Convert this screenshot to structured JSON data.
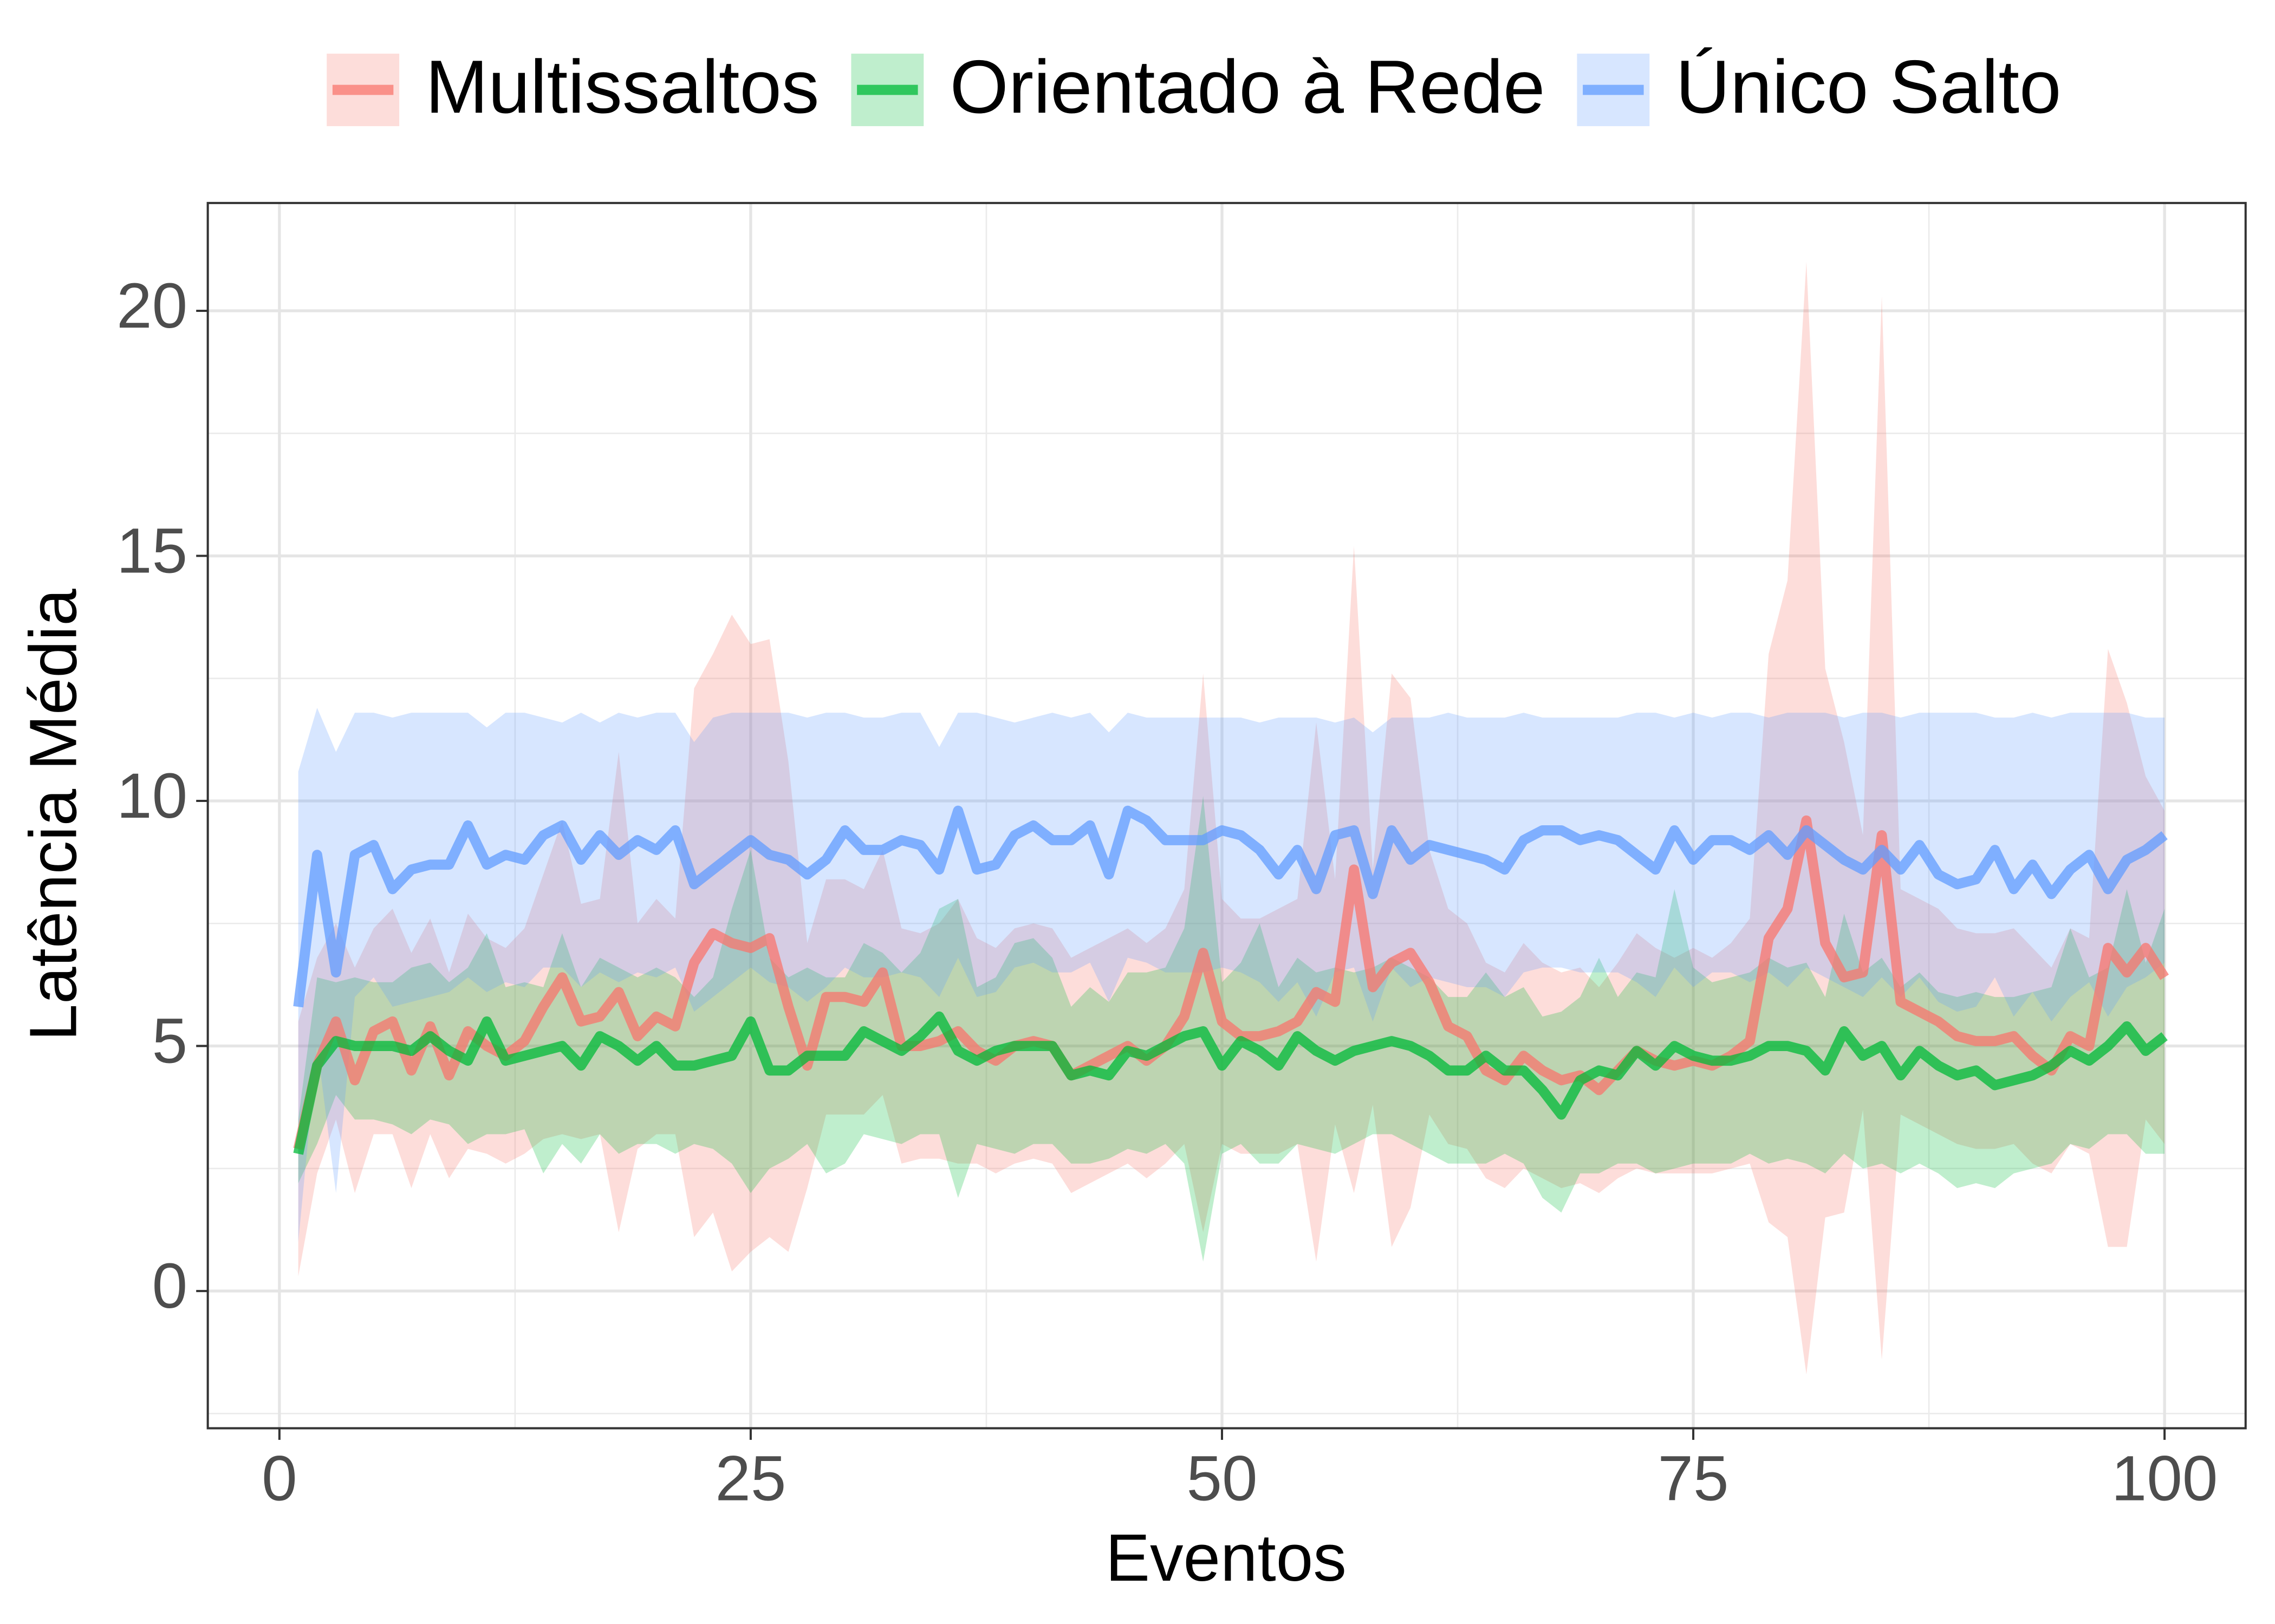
{
  "chart_data": {
    "type": "line",
    "xlabel": "Eventos",
    "ylabel": "Latência Média",
    "legend": "top",
    "grid": true,
    "xlim": [
      -3.8,
      104.3
    ],
    "ylim": [
      -2.8,
      22.2
    ],
    "xticks": [
      0,
      25,
      50,
      75,
      100
    ],
    "yticks": [
      0,
      5,
      10,
      15,
      20
    ],
    "xminorticks": [
      12.5,
      37.5,
      62.5,
      87.5
    ],
    "yminorticks": [
      -2.5,
      2.5,
      7.5,
      12.5,
      17.5
    ],
    "x": [
      1,
      2,
      3,
      4,
      5,
      6,
      7,
      8,
      9,
      10,
      11,
      12,
      13,
      14,
      15,
      16,
      17,
      18,
      19,
      20,
      21,
      22,
      23,
      24,
      25,
      26,
      27,
      28,
      29,
      30,
      31,
      32,
      33,
      34,
      35,
      36,
      37,
      38,
      39,
      40,
      41,
      42,
      43,
      44,
      45,
      46,
      47,
      48,
      49,
      50,
      51,
      52,
      53,
      54,
      55,
      56,
      57,
      58,
      59,
      60,
      61,
      62,
      63,
      64,
      65,
      66,
      67,
      68,
      69,
      70,
      71,
      72,
      73,
      74,
      75,
      76,
      77,
      78,
      79,
      80,
      81,
      82,
      83,
      84,
      85,
      86,
      87,
      88,
      89,
      90,
      91,
      92,
      93,
      94,
      95,
      96,
      97,
      98,
      99,
      100
    ],
    "series": [
      {
        "name": "Multissaltos",
        "color": "#F8766D",
        "values": [
          2.9,
          4.6,
          5.5,
          4.3,
          5.3,
          5.5,
          4.5,
          5.4,
          4.4,
          5.3,
          5.0,
          4.8,
          5.1,
          5.8,
          6.4,
          5.5,
          5.6,
          6.1,
          5.2,
          5.6,
          5.4,
          6.7,
          7.3,
          7.1,
          7.0,
          7.2,
          5.8,
          4.6,
          6.0,
          6.0,
          5.9,
          6.5,
          5.0,
          5.0,
          5.1,
          5.3,
          4.9,
          4.7,
          5.0,
          5.1,
          5.0,
          4.4,
          4.6,
          4.8,
          5.0,
          4.7,
          5.0,
          5.6,
          6.9,
          5.5,
          5.2,
          5.2,
          5.3,
          5.5,
          6.1,
          5.9,
          8.6,
          6.2,
          6.7,
          6.9,
          6.3,
          5.4,
          5.2,
          4.5,
          4.3,
          4.8,
          4.5,
          4.3,
          4.4,
          4.1,
          4.5,
          4.9,
          4.7,
          4.6,
          4.7,
          4.6,
          4.8,
          5.1,
          7.2,
          7.8,
          9.6,
          7.1,
          6.4,
          6.5,
          9.3,
          5.9,
          5.7,
          5.5,
          5.2,
          5.1,
          5.1,
          5.2,
          4.8,
          4.5,
          5.2,
          5.0,
          7.0,
          6.5,
          7.0,
          6.4
        ],
        "upper": [
          5.5,
          6.8,
          7.5,
          6.6,
          7.4,
          7.8,
          6.9,
          7.6,
          6.5,
          7.7,
          7.2,
          7.0,
          7.4,
          8.5,
          9.6,
          7.9,
          8.0,
          11.0,
          7.5,
          8.0,
          7.6,
          12.3,
          13.0,
          13.8,
          13.2,
          13.3,
          10.8,
          7.1,
          8.4,
          8.4,
          8.2,
          9.0,
          7.4,
          7.3,
          7.5,
          8.0,
          7.2,
          7.0,
          7.4,
          7.5,
          7.4,
          6.8,
          7.0,
          7.2,
          7.4,
          7.1,
          7.4,
          8.2,
          12.6,
          8.0,
          7.6,
          7.6,
          7.8,
          8.0,
          11.6,
          8.4,
          15.2,
          8.6,
          12.6,
          12.1,
          9.0,
          7.8,
          7.5,
          6.7,
          6.5,
          7.1,
          6.7,
          6.5,
          6.6,
          6.2,
          6.7,
          7.3,
          7.0,
          6.8,
          7.0,
          6.8,
          7.1,
          7.6,
          13.0,
          14.5,
          21.0,
          12.7,
          11.2,
          9.3,
          20.3,
          8.2,
          8.0,
          7.8,
          7.4,
          7.3,
          7.3,
          7.4,
          7.0,
          6.6,
          7.4,
          7.2,
          13.1,
          12.0,
          10.5,
          9.8
        ],
        "lower": [
          0.3,
          2.4,
          3.5,
          2.0,
          3.2,
          3.2,
          2.1,
          3.2,
          2.3,
          2.9,
          2.8,
          2.6,
          2.8,
          3.1,
          3.2,
          3.1,
          3.2,
          1.2,
          2.9,
          3.2,
          3.2,
          1.1,
          1.6,
          0.4,
          0.8,
          1.1,
          0.8,
          2.1,
          3.6,
          3.6,
          3.6,
          4.0,
          2.6,
          2.7,
          2.7,
          2.6,
          2.6,
          2.4,
          2.6,
          2.7,
          2.6,
          2.0,
          2.2,
          2.4,
          2.6,
          2.3,
          2.6,
          3.0,
          1.2,
          3.0,
          2.8,
          2.8,
          2.8,
          3.0,
          0.6,
          3.4,
          2.0,
          3.8,
          0.9,
          1.7,
          3.6,
          3.0,
          2.9,
          2.3,
          2.1,
          2.5,
          2.3,
          2.1,
          2.2,
          2.0,
          2.3,
          2.5,
          2.4,
          2.4,
          2.4,
          2.4,
          2.5,
          2.6,
          1.4,
          1.1,
          -1.7,
          1.5,
          1.6,
          3.7,
          -1.4,
          3.6,
          3.4,
          3.2,
          3.0,
          2.9,
          2.9,
          3.0,
          2.6,
          2.4,
          3.0,
          2.8,
          0.9,
          0.9,
          3.5,
          3.0
        ]
      },
      {
        "name": "Orientado à Rede",
        "color": "#00BA38",
        "values": [
          2.8,
          4.6,
          5.1,
          5.0,
          5.0,
          5.0,
          4.9,
          5.2,
          4.9,
          4.7,
          5.5,
          4.7,
          4.8,
          4.9,
          5.0,
          4.6,
          5.2,
          5.0,
          4.7,
          5.0,
          4.6,
          4.6,
          4.7,
          4.8,
          5.5,
          4.5,
          4.5,
          4.8,
          4.8,
          4.8,
          5.3,
          5.1,
          4.9,
          5.2,
          5.6,
          4.9,
          4.7,
          4.9,
          5.0,
          5.0,
          5.0,
          4.4,
          4.5,
          4.4,
          4.9,
          4.8,
          5.0,
          5.2,
          5.3,
          4.6,
          5.1,
          4.9,
          4.6,
          5.2,
          4.9,
          4.7,
          4.9,
          5.0,
          5.1,
          5.0,
          4.8,
          4.5,
          4.5,
          4.8,
          4.5,
          4.5,
          4.1,
          3.6,
          4.3,
          4.5,
          4.4,
          4.9,
          4.6,
          5.0,
          4.8,
          4.7,
          4.7,
          4.8,
          5.0,
          5.0,
          4.9,
          4.5,
          5.3,
          4.8,
          5.0,
          4.4,
          4.9,
          4.6,
          4.4,
          4.5,
          4.2,
          4.3,
          4.4,
          4.6,
          4.9,
          4.7,
          5.0,
          5.4,
          4.9,
          5.2
        ],
        "upper": [
          3.5,
          6.4,
          6.3,
          6.4,
          6.3,
          6.3,
          6.6,
          6.7,
          6.3,
          6.6,
          7.3,
          6.2,
          6.3,
          6.2,
          7.3,
          6.2,
          6.8,
          6.6,
          6.4,
          6.6,
          6.4,
          6.0,
          6.4,
          7.8,
          9.0,
          6.8,
          6.4,
          6.6,
          6.4,
          6.4,
          7.1,
          6.9,
          6.5,
          6.9,
          7.8,
          8.0,
          6.2,
          6.4,
          7.1,
          7.2,
          6.8,
          5.8,
          6.2,
          5.9,
          6.5,
          6.5,
          6.6,
          7.4,
          10.1,
          6.3,
          6.7,
          7.5,
          6.2,
          6.8,
          6.5,
          6.6,
          6.5,
          6.6,
          6.8,
          6.6,
          6.4,
          6.0,
          6.0,
          6.5,
          6.0,
          6.2,
          5.6,
          5.7,
          6.0,
          6.8,
          6.0,
          6.5,
          6.4,
          8.2,
          6.6,
          6.3,
          6.4,
          6.5,
          6.8,
          6.6,
          6.7,
          6.0,
          7.7,
          6.5,
          6.8,
          6.2,
          6.5,
          6.1,
          6.0,
          6.1,
          6.0,
          6.0,
          6.1,
          6.2,
          7.4,
          6.4,
          6.6,
          8.2,
          6.7,
          7.8
        ],
        "lower": [
          2.2,
          3.0,
          4.0,
          3.5,
          3.5,
          3.4,
          3.2,
          3.5,
          3.4,
          3.0,
          3.2,
          3.2,
          3.3,
          2.4,
          3.0,
          2.6,
          3.2,
          2.8,
          3.0,
          3.0,
          2.8,
          3.0,
          2.9,
          2.6,
          2.0,
          2.5,
          2.7,
          3.0,
          2.4,
          2.6,
          3.2,
          3.1,
          3.0,
          3.2,
          3.2,
          1.9,
          3.0,
          2.9,
          2.8,
          3.0,
          3.0,
          2.6,
          2.6,
          2.7,
          2.9,
          2.8,
          3.0,
          2.6,
          0.6,
          2.8,
          3.0,
          2.6,
          2.6,
          3.0,
          2.9,
          2.8,
          3.0,
          3.2,
          3.2,
          3.0,
          2.8,
          2.6,
          2.6,
          2.6,
          2.8,
          2.6,
          1.9,
          1.6,
          2.4,
          2.4,
          2.6,
          2.6,
          2.4,
          2.5,
          2.6,
          2.6,
          2.6,
          2.8,
          2.6,
          2.7,
          2.6,
          2.4,
          2.8,
          2.5,
          2.6,
          2.4,
          2.6,
          2.4,
          2.1,
          2.2,
          2.1,
          2.4,
          2.5,
          2.6,
          3.0,
          2.9,
          3.2,
          3.2,
          2.8,
          2.8
        ]
      },
      {
        "name": "Único Salto",
        "color": "#619CFF",
        "values": [
          5.8,
          8.9,
          6.5,
          8.9,
          9.1,
          8.2,
          8.6,
          8.7,
          8.7,
          9.5,
          8.7,
          8.9,
          8.8,
          9.3,
          9.5,
          8.8,
          9.3,
          8.9,
          9.2,
          9.0,
          9.4,
          8.3,
          8.6,
          8.9,
          9.2,
          8.9,
          8.8,
          8.5,
          8.8,
          9.4,
          9.0,
          9.0,
          9.2,
          9.1,
          8.6,
          9.8,
          8.6,
          8.7,
          9.3,
          9.5,
          9.2,
          9.2,
          9.5,
          8.5,
          9.8,
          9.6,
          9.2,
          9.2,
          9.2,
          9.4,
          9.3,
          9.0,
          8.5,
          9.0,
          8.2,
          9.3,
          9.4,
          8.1,
          9.4,
          8.8,
          9.1,
          9.0,
          8.9,
          8.8,
          8.6,
          9.2,
          9.4,
          9.4,
          9.2,
          9.3,
          9.2,
          8.9,
          8.6,
          9.4,
          8.8,
          9.2,
          9.2,
          9.0,
          9.3,
          8.9,
          9.4,
          9.1,
          8.8,
          8.6,
          9.0,
          8.6,
          9.1,
          8.5,
          8.3,
          8.4,
          9.0,
          8.2,
          8.7,
          8.1,
          8.6,
          8.9,
          8.2,
          8.8,
          9.0,
          9.3
        ],
        "upper": [
          10.6,
          11.9,
          11.0,
          11.8,
          11.8,
          11.7,
          11.8,
          11.8,
          11.8,
          11.8,
          11.5,
          11.8,
          11.8,
          11.7,
          11.6,
          11.8,
          11.6,
          11.8,
          11.7,
          11.8,
          11.8,
          11.2,
          11.7,
          11.8,
          11.8,
          11.8,
          11.8,
          11.7,
          11.8,
          11.8,
          11.7,
          11.7,
          11.8,
          11.8,
          11.1,
          11.8,
          11.8,
          11.7,
          11.6,
          11.7,
          11.8,
          11.7,
          11.8,
          11.4,
          11.8,
          11.7,
          11.7,
          11.7,
          11.7,
          11.7,
          11.7,
          11.6,
          11.7,
          11.7,
          11.7,
          11.6,
          11.7,
          11.4,
          11.7,
          11.7,
          11.7,
          11.8,
          11.7,
          11.7,
          11.7,
          11.8,
          11.7,
          11.7,
          11.7,
          11.7,
          11.7,
          11.8,
          11.8,
          11.7,
          11.8,
          11.7,
          11.8,
          11.8,
          11.7,
          11.8,
          11.8,
          11.8,
          11.7,
          11.8,
          11.8,
          11.7,
          11.8,
          11.8,
          11.8,
          11.8,
          11.7,
          11.7,
          11.8,
          11.7,
          11.8,
          11.8,
          11.8,
          11.8,
          11.7,
          11.7
        ],
        "lower": [
          1.0,
          5.0,
          2.0,
          6.0,
          6.4,
          5.8,
          5.9,
          6.0,
          6.1,
          6.4,
          6.1,
          6.3,
          6.2,
          6.6,
          6.6,
          6.2,
          6.5,
          6.3,
          6.5,
          6.4,
          6.6,
          5.7,
          6.0,
          6.3,
          6.6,
          6.3,
          6.2,
          5.9,
          6.2,
          6.6,
          6.4,
          6.4,
          6.5,
          6.4,
          6.0,
          6.8,
          6.0,
          6.1,
          6.6,
          6.7,
          6.5,
          6.5,
          6.7,
          5.9,
          6.8,
          6.7,
          6.5,
          6.5,
          6.5,
          6.6,
          6.5,
          6.3,
          5.9,
          6.3,
          5.6,
          6.5,
          6.6,
          5.5,
          6.6,
          6.2,
          6.4,
          6.3,
          6.2,
          6.2,
          6.0,
          6.5,
          6.6,
          6.6,
          6.5,
          6.5,
          6.5,
          6.3,
          6.0,
          6.6,
          6.2,
          6.5,
          6.5,
          6.3,
          6.5,
          6.2,
          6.6,
          6.4,
          6.2,
          6.0,
          6.4,
          6.0,
          6.4,
          5.9,
          5.7,
          5.8,
          6.4,
          5.6,
          6.1,
          5.5,
          6.0,
          6.3,
          5.6,
          6.2,
          6.4,
          6.7
        ]
      }
    ]
  }
}
